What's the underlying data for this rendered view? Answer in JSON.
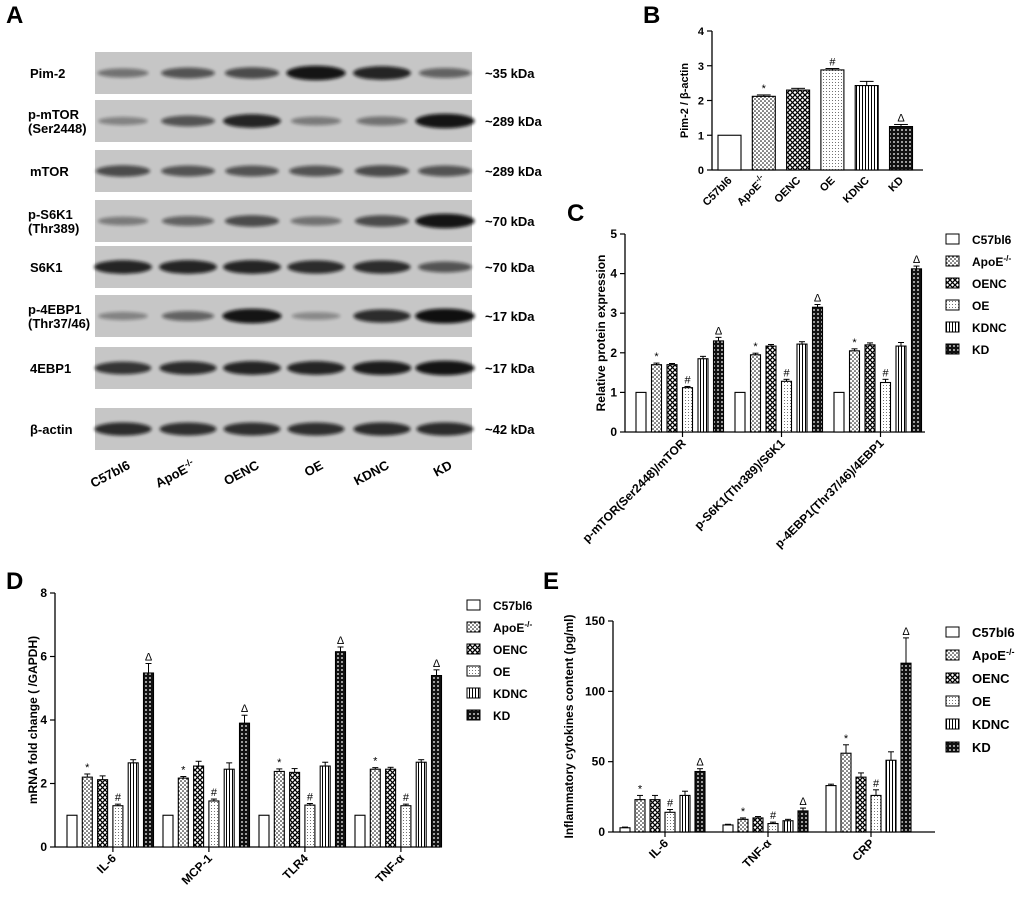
{
  "panels": {
    "A": "A",
    "B": "B",
    "C": "C",
    "D": "D",
    "E": "E"
  },
  "blot": {
    "rows": [
      {
        "label_lines": [
          "Pim-2"
        ],
        "size": "~35 kDa",
        "intensity": [
          0.35,
          0.55,
          0.6,
          0.95,
          0.85,
          0.45
        ]
      },
      {
        "label_lines": [
          "p-mTOR",
          "(Ser2448)"
        ],
        "size": "~289 kDa",
        "intensity": [
          0.25,
          0.55,
          0.85,
          0.3,
          0.35,
          0.95
        ]
      },
      {
        "label_lines": [
          "mTOR"
        ],
        "size": "~289 kDa",
        "intensity": [
          0.6,
          0.55,
          0.55,
          0.55,
          0.6,
          0.55
        ]
      },
      {
        "label_lines": [
          "p-S6K1",
          "(Thr389)"
        ],
        "size": "~70 kDa",
        "intensity": [
          0.3,
          0.45,
          0.6,
          0.35,
          0.6,
          0.95
        ]
      },
      {
        "label_lines": [
          "S6K1"
        ],
        "size": "~70 kDa",
        "intensity": [
          0.85,
          0.85,
          0.85,
          0.8,
          0.8,
          0.55
        ]
      },
      {
        "label_lines": [
          "p-4EBP1",
          "(Thr37/46)"
        ],
        "size": "~17 kDa",
        "intensity": [
          0.25,
          0.45,
          0.95,
          0.2,
          0.8,
          0.98
        ]
      },
      {
        "label_lines": [
          "4EBP1"
        ],
        "size": "~17 kDa",
        "intensity": [
          0.75,
          0.8,
          0.85,
          0.85,
          0.9,
          0.95
        ]
      },
      {
        "label_lines": [
          "β-actin"
        ],
        "size": "~42 kDa",
        "intensity": [
          0.8,
          0.78,
          0.78,
          0.78,
          0.8,
          0.8
        ]
      }
    ],
    "lanes": [
      {
        "text": "C57bl6",
        "sup": ""
      },
      {
        "text": "ApoE",
        "sup": "-/-"
      },
      {
        "text": "OENC",
        "sup": ""
      },
      {
        "text": "OE",
        "sup": ""
      },
      {
        "text": "KDNC",
        "sup": ""
      },
      {
        "text": "KD",
        "sup": ""
      }
    ]
  },
  "groups": [
    {
      "text": "C57bl6",
      "sup": "",
      "pattern": "white"
    },
    {
      "text": "ApoE",
      "sup": "-/-",
      "pattern": "dots"
    },
    {
      "text": "OENC",
      "sup": "",
      "pattern": "cross"
    },
    {
      "text": "OE",
      "sup": "",
      "pattern": "finedots"
    },
    {
      "text": "KDNC",
      "sup": "",
      "pattern": "vlines"
    },
    {
      "text": "KD",
      "sup": "",
      "pattern": "darkdots"
    }
  ],
  "chart_data": [
    {
      "id": "B",
      "type": "bar",
      "ylabel": "Pim-2 / β-actin",
      "ylim": [
        0,
        4
      ],
      "yticks": [
        0,
        1,
        2,
        3,
        4
      ],
      "categories": [
        "C57bl6",
        "ApoE-/-",
        "OENC",
        "OE",
        "KDNC",
        "KD"
      ],
      "values": [
        1.0,
        2.12,
        2.3,
        2.88,
        2.43,
        1.25
      ],
      "errors": [
        0,
        0.04,
        0.05,
        0.04,
        0.12,
        0.06
      ],
      "marks": [
        "",
        "*",
        "",
        "#",
        "",
        "Δ"
      ]
    },
    {
      "id": "C",
      "type": "bar",
      "ylabel": "Relative protein expression",
      "ylim": [
        0,
        5
      ],
      "yticks": [
        0,
        1,
        2,
        3,
        4,
        5
      ],
      "categories": [
        "p-mTOR(Ser2448)/mTOR",
        "p-S6K1(Thr389)/S6K1",
        "p-4EBP1(Thr37/46)/4EBP1"
      ],
      "series": [
        {
          "name": "C57bl6",
          "values": [
            1.0,
            1.0,
            1.0
          ],
          "errors": [
            0,
            0,
            0
          ],
          "marks": [
            "",
            "",
            ""
          ]
        },
        {
          "name": "ApoE-/-",
          "values": [
            1.7,
            1.95,
            2.05
          ],
          "errors": [
            0.04,
            0.04,
            0.05
          ],
          "marks": [
            "*",
            "*",
            "*"
          ]
        },
        {
          "name": "OENC",
          "values": [
            1.7,
            2.17,
            2.2
          ],
          "errors": [
            0.03,
            0.04,
            0.05
          ],
          "marks": [
            "",
            "",
            ""
          ]
        },
        {
          "name": "OE",
          "values": [
            1.12,
            1.28,
            1.25
          ],
          "errors": [
            0.03,
            0.05,
            0.08
          ],
          "marks": [
            "#",
            "#",
            "#"
          ]
        },
        {
          "name": "KDNC",
          "values": [
            1.85,
            2.22,
            2.17
          ],
          "errors": [
            0.06,
            0.06,
            0.09
          ],
          "marks": [
            "",
            "",
            ""
          ]
        },
        {
          "name": "KD",
          "values": [
            2.3,
            3.15,
            4.12
          ],
          "errors": [
            0.09,
            0.07,
            0.07
          ],
          "marks": [
            "Δ",
            "Δ",
            "Δ"
          ]
        }
      ]
    },
    {
      "id": "D",
      "type": "bar",
      "ylabel": "mRNA fold change ( /GAPDH)",
      "ylim": [
        0,
        8
      ],
      "yticks": [
        0,
        2,
        4,
        6,
        8
      ],
      "categories": [
        "IL-6",
        "MCP-1",
        "TLR4",
        "TNF-α"
      ],
      "series": [
        {
          "name": "C57bl6",
          "values": [
            1.0,
            1.0,
            1.0,
            1.0
          ],
          "errors": [
            0,
            0,
            0,
            0
          ],
          "marks": [
            "",
            "",
            "",
            ""
          ]
        },
        {
          "name": "ApoE-/-",
          "values": [
            2.2,
            2.17,
            2.38,
            2.45
          ],
          "errors": [
            0.1,
            0.05,
            0.08,
            0.05
          ],
          "marks": [
            "*",
            "*",
            "*",
            "*"
          ]
        },
        {
          "name": "OENC",
          "values": [
            2.12,
            2.55,
            2.35,
            2.45
          ],
          "errors": [
            0.12,
            0.15,
            0.12,
            0.06
          ],
          "marks": [
            "",
            "",
            "",
            ""
          ]
        },
        {
          "name": "OE",
          "values": [
            1.3,
            1.45,
            1.32,
            1.3
          ],
          "errors": [
            0.05,
            0.06,
            0.05,
            0.05
          ],
          "marks": [
            "#",
            "#",
            "#",
            "#"
          ]
        },
        {
          "name": "KDNC",
          "values": [
            2.65,
            2.45,
            2.55,
            2.67
          ],
          "errors": [
            0.1,
            0.2,
            0.12,
            0.08
          ],
          "marks": [
            "",
            "",
            "",
            ""
          ]
        },
        {
          "name": "KD",
          "values": [
            5.48,
            3.9,
            6.15,
            5.4
          ],
          "errors": [
            0.3,
            0.25,
            0.15,
            0.18
          ],
          "marks": [
            "Δ",
            "Δ",
            "Δ",
            "Δ"
          ]
        }
      ]
    },
    {
      "id": "E",
      "type": "bar",
      "ylabel": "Inflammatory cytokines content (pg/ml)",
      "ylim": [
        0,
        150
      ],
      "yticks": [
        0,
        50,
        100,
        150
      ],
      "categories": [
        "IL-6",
        "TNF-α",
        "CRP"
      ],
      "series": [
        {
          "name": "C57bl6",
          "values": [
            3.0,
            5.0,
            33.0
          ],
          "errors": [
            0.5,
            0.5,
            1.0
          ],
          "marks": [
            "",
            "",
            ""
          ]
        },
        {
          "name": "ApoE-/-",
          "values": [
            23.0,
            9.0,
            56.0
          ],
          "errors": [
            3.0,
            1.0,
            6.0
          ],
          "marks": [
            "*",
            "*",
            "*"
          ]
        },
        {
          "name": "OENC",
          "values": [
            23.0,
            10.0,
            39.0
          ],
          "errors": [
            3.0,
            1.0,
            3.0
          ],
          "marks": [
            "",
            "",
            ""
          ]
        },
        {
          "name": "OE",
          "values": [
            14.0,
            6.0,
            26.0
          ],
          "errors": [
            2.0,
            1.0,
            4.0
          ],
          "marks": [
            "#",
            "#",
            "#"
          ]
        },
        {
          "name": "KDNC",
          "values": [
            26.0,
            8.0,
            51.0
          ],
          "errors": [
            3.0,
            1.0,
            6.0
          ],
          "marks": [
            "",
            "",
            ""
          ]
        },
        {
          "name": "KD",
          "values": [
            43.0,
            15.0,
            120.0
          ],
          "errors": [
            2.0,
            2.0,
            18.0
          ],
          "marks": [
            "Δ",
            "Δ",
            "Δ"
          ]
        }
      ]
    }
  ]
}
